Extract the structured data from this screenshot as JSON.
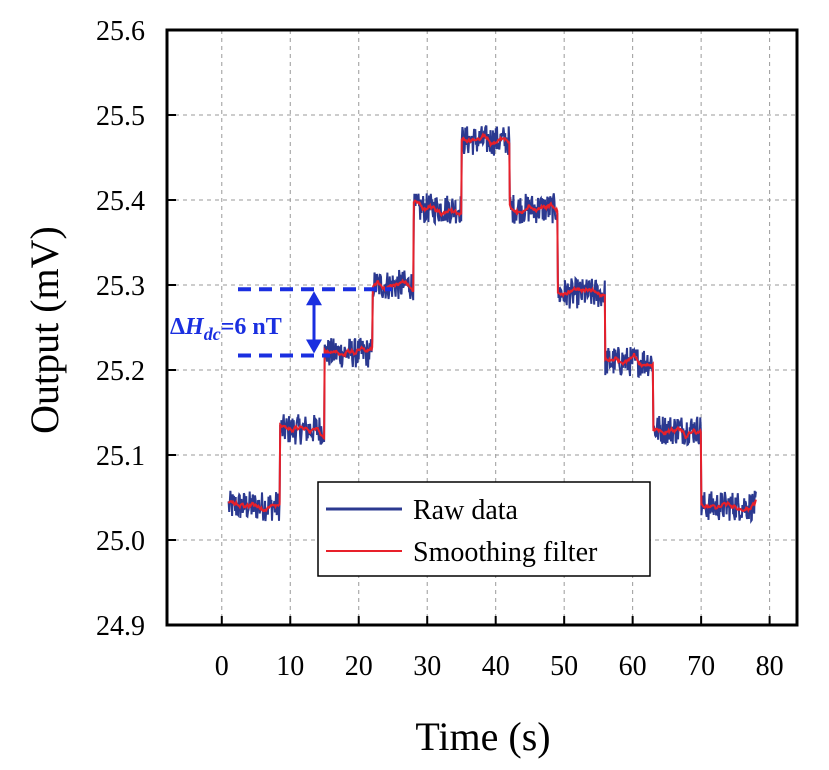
{
  "chart_data": {
    "type": "line",
    "title": "",
    "xlabel": "Time (s)",
    "ylabel": "Output (mV)",
    "xlim": [
      -8,
      84
    ],
    "ylim": [
      24.9,
      25.6
    ],
    "xticks": [
      "0",
      "10",
      "20",
      "30",
      "40",
      "50",
      "60",
      "70",
      "80"
    ],
    "xtick_values": [
      0,
      10,
      20,
      30,
      40,
      50,
      60,
      70,
      80
    ],
    "yticks": [
      "24.9",
      "25.0",
      "25.1",
      "25.2",
      "25.3",
      "25.4",
      "25.5",
      "25.6"
    ],
    "ytick_values": [
      24.9,
      25.0,
      25.1,
      25.2,
      25.3,
      25.4,
      25.5,
      25.6
    ],
    "grid": true,
    "legend_position": "bottom-center",
    "steps": [
      {
        "x_start": 1,
        "x_end": 8.5,
        "level": 25.04
      },
      {
        "x_start": 8.5,
        "x_end": 15,
        "level": 25.13
      },
      {
        "x_start": 15,
        "x_end": 22,
        "level": 25.22
      },
      {
        "x_start": 22,
        "x_end": 28,
        "level": 25.3
      },
      {
        "x_start": 28,
        "x_end": 35,
        "level": 25.39
      },
      {
        "x_start": 35,
        "x_end": 42,
        "level": 25.47
      },
      {
        "x_start": 42,
        "x_end": 49,
        "level": 25.39
      },
      {
        "x_start": 49,
        "x_end": 56,
        "level": 25.29
      },
      {
        "x_start": 56,
        "x_end": 63,
        "level": 25.21
      },
      {
        "x_start": 63,
        "x_end": 70,
        "level": 25.13
      },
      {
        "x_start": 70,
        "x_end": 78,
        "level": 25.04
      }
    ],
    "series": [
      {
        "name": "Raw data",
        "color": "#2b3990",
        "noise": 0.018
      },
      {
        "name": "Smoothing filter",
        "color": "#e8202a",
        "noise": 0.004
      }
    ],
    "annotation": {
      "delta_symbol": "Δ",
      "variable": "H",
      "subscript": "dc",
      "value_text": "=6 nT",
      "upper_level": 25.295,
      "lower_level": 25.217,
      "color": "#1a2fe0"
    }
  }
}
